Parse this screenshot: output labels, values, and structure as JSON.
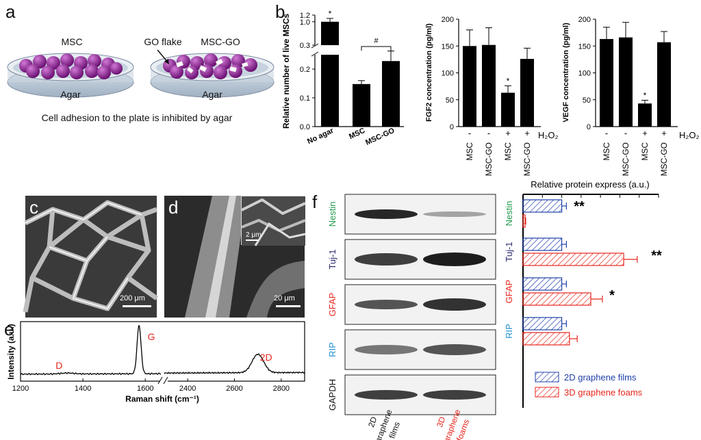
{
  "labels": {
    "a": "a",
    "b": "b",
    "c": "c",
    "d": "d",
    "e": "e",
    "f": "f"
  },
  "panel_a": {
    "dish_left": "MSC",
    "dish_right": "MSC-GO",
    "flake": "GO flake",
    "agar_left": "Agar",
    "agar_right": "Agar",
    "caption": "Cell adhesion to the plate is inhibited by agar"
  },
  "panel_c": {
    "scale": "200 μm"
  },
  "panel_d": {
    "scale": "20 μm",
    "inset_scale": "2 μm"
  },
  "colors": {
    "bar": "#000000",
    "blue": "#1f3fa8",
    "red": "#e8261c",
    "green": "#1e9a4a",
    "purple": "#2b2a6e",
    "cyan": "#1a8fd0"
  },
  "chart_data": [
    {
      "type": "bar",
      "ylabel": "Relative number of live MSCs",
      "categories": [
        "No agar",
        "MSC",
        "MSC-GO"
      ],
      "values": [
        1.0,
        0.148,
        0.228
      ],
      "errors": [
        0.1,
        0.012,
        0.035
      ],
      "upper_ticks": [
        "1.2",
        "1.0",
        "0.3"
      ],
      "lower_ticks": [
        "0.0",
        "0.1",
        "0.2"
      ],
      "axis_break": true,
      "annotations": [
        "*",
        "#"
      ]
    },
    {
      "type": "bar",
      "ylabel": "FGF2 concentration (pg/ml)",
      "categories": [
        "MSC",
        "MSC-GO",
        "MSC",
        "MSC-GO"
      ],
      "signs": [
        "-",
        "-",
        "+",
        "+"
      ],
      "sign_label": "H₂O₂",
      "values": [
        150,
        152,
        63,
        126
      ],
      "errors": [
        30,
        32,
        13,
        20
      ],
      "ylim": [
        0,
        200
      ],
      "ticks": [
        "0",
        "50",
        "100",
        "150",
        "200"
      ],
      "annotations": [
        "*"
      ]
    },
    {
      "type": "bar",
      "ylabel": "VEGF concentration (pg/ml)",
      "categories": [
        "MSC",
        "MSC-GO",
        "MSC",
        "MSC-GO"
      ],
      "signs": [
        "-",
        "-",
        "+",
        "+"
      ],
      "sign_label": "H₂O₂",
      "values": [
        163,
        166,
        43,
        157
      ],
      "errors": [
        22,
        28,
        6,
        20
      ],
      "ylim": [
        0,
        200
      ],
      "ticks": [
        "0",
        "50",
        "100",
        "150",
        "200"
      ],
      "annotations": [
        "*"
      ]
    },
    {
      "type": "line",
      "xlabel": "Raman shift (cm⁻¹)",
      "ylabel": "Intensity (a.u.)",
      "x_ticks": [
        "1200",
        "1400",
        "1600",
        "2400",
        "2600",
        "2800"
      ],
      "peaks": [
        {
          "name": "D",
          "x": 1350,
          "y": 0.02
        },
        {
          "name": "G",
          "x": 1580,
          "y": 1.0
        },
        {
          "name": "2D",
          "x": 2700,
          "y": 0.38
        }
      ],
      "axis_break": true
    },
    {
      "type": "bar",
      "title": "Relative protein express (a.u.)",
      "orientation": "horizontal",
      "categories": [
        "Nestin",
        "Tuj-1",
        "GFAP",
        "RIP"
      ],
      "series": [
        {
          "name": "2D graphene films",
          "values": [
            1.0,
            1.0,
            1.0,
            1.0
          ],
          "errors": [
            0.12,
            0.12,
            0.12,
            0.12
          ]
        },
        {
          "name": "3D graphene foams",
          "values": [
            0.05,
            2.6,
            1.75,
            1.2
          ],
          "errors": [
            0.02,
            0.35,
            0.3,
            0.2
          ]
        }
      ],
      "annotations": [
        "**",
        "**",
        "*",
        ""
      ]
    }
  ],
  "panel_f": {
    "rows": [
      "Nestin",
      "Tuj-1",
      "GFAP",
      "RIP",
      "GAPDH"
    ],
    "lane1": [
      "2D",
      "graphene",
      "films"
    ],
    "lane2": [
      "3D",
      "graphene",
      "foams"
    ]
  }
}
